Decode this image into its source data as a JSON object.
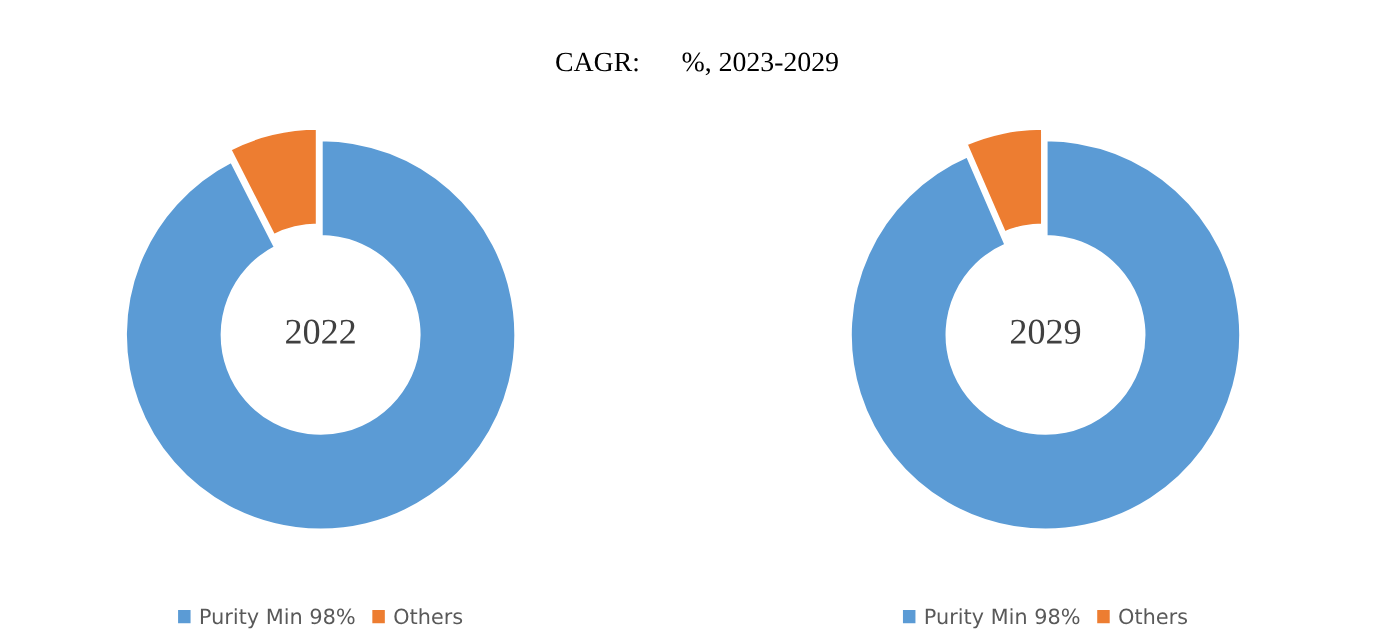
{
  "chart_data": [
    {
      "type": "donut",
      "title": "CAGR:      %, 2023-2029",
      "categories": [
        "Purity Min 98%",
        "Others"
      ],
      "values": [
        92.5,
        7.5
      ],
      "colors": [
        "#5b9bd5",
        "#ed7d31"
      ],
      "annotations": [
        "2022"
      ],
      "legend": "bottom"
    },
    {
      "type": "donut",
      "categories": [
        "Purity Min 98%",
        "Others"
      ],
      "values": [
        93.5,
        6.5
      ],
      "colors": [
        "#5b9bd5",
        "#ed7d31"
      ],
      "annotations": [
        "2029"
      ],
      "legend": "bottom"
    }
  ]
}
